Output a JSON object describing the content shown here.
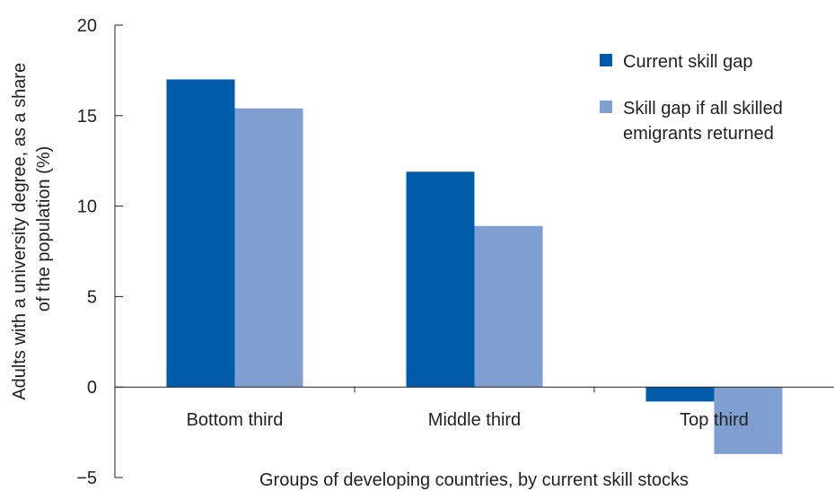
{
  "chart_data": {
    "type": "bar",
    "categories": [
      "Bottom third",
      "Middle third",
      "Top third"
    ],
    "series": [
      {
        "name": "Current skill gap",
        "color": "#005bab",
        "values": [
          17.0,
          11.9,
          -0.8
        ]
      },
      {
        "name": "Skill gap if all skilled emigrants returned",
        "name_lines": [
          "Skill gap if all skilled",
          "emigrants returned"
        ],
        "color": "#7f9fd0",
        "values": [
          15.4,
          8.9,
          -3.7
        ]
      }
    ],
    "xlabel": "Groups of developing countries, by current skill stocks",
    "ylabel_lines": [
      "Adults with a university degree, as a share",
      "of the population (%)"
    ],
    "ylim": [
      -5,
      20
    ],
    "yticks": [
      {
        "value": -5,
        "label": "−5"
      },
      {
        "value": 0,
        "label": "0"
      },
      {
        "value": 5,
        "label": "5"
      },
      {
        "value": 10,
        "label": "10"
      },
      {
        "value": 15,
        "label": "15"
      },
      {
        "value": 20,
        "label": "20"
      }
    ],
    "grid": false,
    "legend_position": "top-right"
  }
}
